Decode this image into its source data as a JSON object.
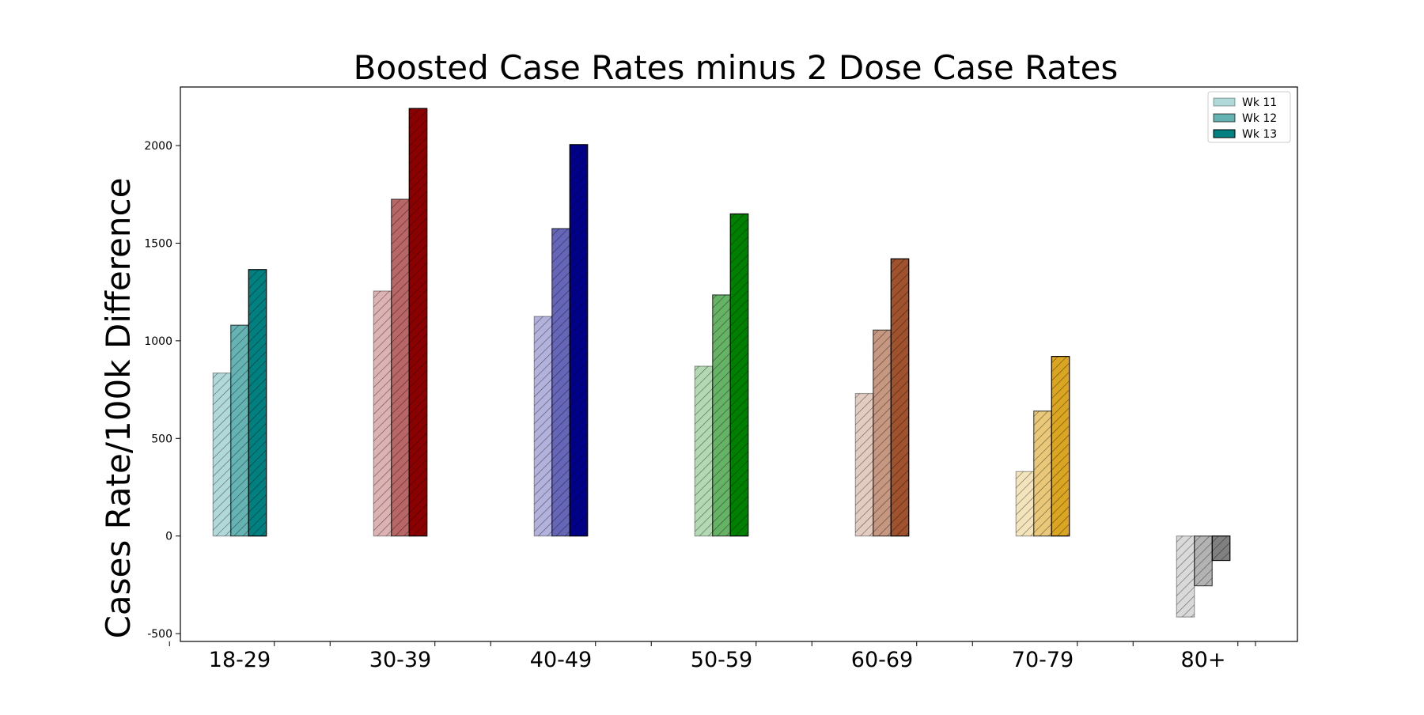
{
  "chart_data": {
    "type": "bar",
    "title": "Boosted Case Rates minus 2 Dose Case Rates",
    "xlabel": "",
    "ylabel": "Cases Rate/100k Difference",
    "categories": [
      "18-29",
      "30-39",
      "40-49",
      "50-59",
      "60-69",
      "70-79",
      "80+"
    ],
    "ylim": [
      -540,
      2300
    ],
    "yticks": [
      -500,
      0,
      500,
      1000,
      1500,
      2000
    ],
    "grid": false,
    "legend_position": "top-right",
    "series": [
      {
        "name": "Wk 11",
        "values": [
          835,
          1255,
          1125,
          870,
          730,
          330,
          -415
        ]
      },
      {
        "name": "Wk 12",
        "values": [
          1080,
          1725,
          1575,
          1235,
          1055,
          640,
          -255
        ]
      },
      {
        "name": "Wk 13",
        "values": [
          1365,
          2190,
          2005,
          1650,
          1420,
          920,
          -125
        ]
      }
    ],
    "category_colors": [
      "#008080",
      "#8b0000",
      "#00008b",
      "#008000",
      "#a0522d",
      "#daa520",
      "#808080"
    ],
    "series_opacity": [
      0.3,
      0.6,
      1.0
    ],
    "legend_color": "#008080"
  }
}
